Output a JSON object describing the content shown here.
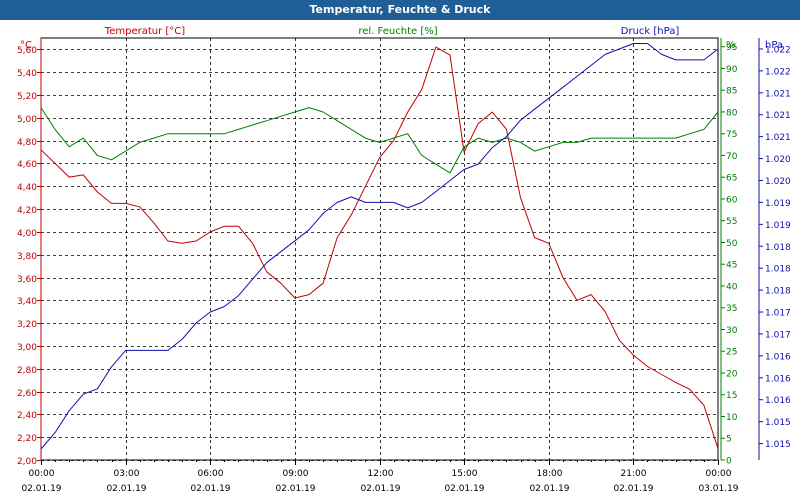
{
  "window": {
    "title": "Temperatur, Feuchte & Druck"
  },
  "colors": {
    "temperature": "#c00000",
    "humidity": "#008000",
    "pressure": "#1010b0",
    "titlebar": "#1f5e96"
  },
  "chart_data": {
    "type": "line",
    "title": "Temperatur, Feuchte & Druck",
    "grid": true,
    "x_ticks": [
      {
        "time": "00:00",
        "date": "02.01.19"
      },
      {
        "time": "03:00",
        "date": "02.01.19"
      },
      {
        "time": "06:00",
        "date": "02.01.19"
      },
      {
        "time": "09:00",
        "date": "02.01.19"
      },
      {
        "time": "12:00",
        "date": "02.01.19"
      },
      {
        "time": "15:00",
        "date": "02.01.19"
      },
      {
        "time": "18:00",
        "date": "02.01.19"
      },
      {
        "time": "21:00",
        "date": "02.01.19"
      },
      {
        "time": "00:00",
        "date": "03.01.19"
      }
    ],
    "x_hours": [
      0,
      0.5,
      1,
      1.5,
      2,
      2.5,
      3,
      3.5,
      4,
      4.5,
      5,
      5.5,
      6,
      6.5,
      7,
      7.5,
      8,
      8.5,
      9,
      9.5,
      10,
      10.5,
      11,
      11.5,
      12,
      12.5,
      13,
      13.5,
      14,
      14.5,
      15,
      15.5,
      16,
      16.5,
      17,
      17.5,
      18,
      18.5,
      19,
      19.5,
      20,
      20.5,
      21,
      21.5,
      22,
      22.5,
      23,
      23.5,
      24
    ],
    "left_axis": {
      "unit": "°C",
      "min": 2.0,
      "max": 5.7,
      "ticks": [
        "2,00",
        "2,20",
        "2,40",
        "2,60",
        "2,80",
        "3,00",
        "3,20",
        "3,40",
        "3,60",
        "3,80",
        "4,00",
        "4,20",
        "4,40",
        "4,60",
        "4,80",
        "5,00",
        "5,20",
        "5,40",
        "5,60"
      ]
    },
    "mid_axis": {
      "unit": "%",
      "min": 0,
      "max": 97,
      "ticks": [
        "0",
        "5",
        "10",
        "15",
        "20",
        "25",
        "30",
        "35",
        "40",
        "45",
        "50",
        "55",
        "60",
        "65",
        "70",
        "75",
        "80",
        "85",
        "90",
        "95"
      ]
    },
    "right_axis": {
      "unit": "hPa",
      "min": 1014.6,
      "max": 1022.3,
      "tick_values": [
        1014.9,
        1015.3,
        1015.7,
        1016.1,
        1016.5,
        1016.9,
        1017.3,
        1017.7,
        1018.1,
        1018.5,
        1018.9,
        1019.3,
        1019.7,
        1020.1,
        1020.5,
        1020.9,
        1021.3,
        1021.7,
        1022.1
      ],
      "ticks": [
        "1.015",
        "1.015",
        "1.016",
        "1.016",
        "1.016",
        "1.017",
        "1.017",
        "1.018",
        "1.018",
        "1.018",
        "1.019",
        "1.019",
        "1.020",
        "1.020",
        "1.021",
        "1.021",
        "1.021",
        "1.022",
        "1.022"
      ]
    },
    "series": [
      {
        "name": "Temperatur [°C]",
        "axis": "left",
        "values": [
          4.72,
          4.6,
          4.48,
          4.5,
          4.35,
          4.25,
          4.25,
          4.22,
          4.08,
          3.92,
          3.9,
          3.92,
          4.0,
          4.05,
          4.05,
          3.9,
          3.65,
          3.55,
          3.42,
          3.45,
          3.55,
          3.95,
          4.15,
          4.4,
          4.65,
          4.8,
          5.05,
          5.25,
          5.62,
          5.55,
          4.7,
          4.95,
          5.05,
          4.9,
          4.3,
          3.95,
          3.9,
          3.6,
          3.4,
          3.45,
          3.3,
          3.05,
          2.92,
          2.82,
          2.75,
          2.68,
          2.62,
          2.48,
          2.1
        ]
      },
      {
        "name": "rel. Feuchte [%]",
        "axis": "mid",
        "values": [
          81,
          76,
          72,
          74,
          70,
          69,
          71,
          73,
          74,
          75,
          75,
          75,
          75,
          75,
          76,
          77,
          78,
          79,
          80,
          81,
          80,
          78,
          76,
          74,
          73,
          74,
          75,
          70,
          68,
          66,
          72,
          74,
          73,
          74,
          73,
          71,
          72,
          73,
          73,
          74,
          74,
          74,
          74,
          74,
          74,
          74,
          75,
          76,
          80
        ]
      },
      {
        "name": "Druck [hPa]",
        "axis": "right",
        "values": [
          1014.8,
          1015.1,
          1015.5,
          1015.8,
          1015.9,
          1016.3,
          1016.6,
          1016.6,
          1016.6,
          1016.6,
          1016.8,
          1017.1,
          1017.3,
          1017.4,
          1017.6,
          1017.9,
          1018.2,
          1018.4,
          1018.6,
          1018.8,
          1019.1,
          1019.3,
          1019.4,
          1019.3,
          1019.3,
          1019.3,
          1019.2,
          1019.3,
          1019.5,
          1019.7,
          1019.9,
          1020.0,
          1020.3,
          1020.5,
          1020.8,
          1021.0,
          1021.2,
          1021.4,
          1021.6,
          1021.8,
          1022.0,
          1022.1,
          1022.2,
          1022.2,
          1022.0,
          1021.9,
          1021.9,
          1021.9,
          1022.1
        ]
      }
    ]
  }
}
